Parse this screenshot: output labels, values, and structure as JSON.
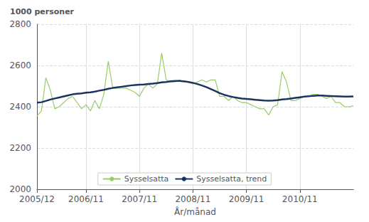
{
  "chart_data": {
    "type": "line",
    "ylabel": "1000 personer",
    "xlabel": "År/månad",
    "categories": [
      "2005/12",
      null,
      null,
      null,
      null,
      null,
      null,
      null,
      null,
      null,
      null,
      "2006/11",
      null,
      null,
      null,
      null,
      null,
      null,
      null,
      null,
      null,
      null,
      null,
      "2007/11",
      null,
      null,
      null,
      null,
      null,
      null,
      null,
      null,
      null,
      null,
      null,
      "2008/11",
      null,
      null,
      null,
      null,
      null,
      null,
      null,
      null,
      null,
      null,
      null,
      "2009/11",
      null,
      null,
      null,
      null,
      null,
      null,
      null,
      null,
      null,
      null,
      null,
      "2010/11",
      null,
      null,
      null,
      null,
      null,
      null,
      null,
      null,
      null,
      null,
      null,
      null
    ],
    "series": [
      {
        "name": "Sysselsatta",
        "color": "#99cc66",
        "values": [
          2355,
          2380,
          2540,
          2480,
          2390,
          2400,
          2420,
          2440,
          2450,
          2420,
          2390,
          2410,
          2380,
          2430,
          2390,
          2460,
          2620,
          2490,
          2490,
          2490,
          2490,
          2480,
          2470,
          2450,
          2490,
          2510,
          2490,
          2510,
          2660,
          2530,
          2520,
          2520,
          2530,
          2520,
          2520,
          2510,
          2520,
          2530,
          2520,
          2530,
          2530,
          2450,
          2450,
          2430,
          2450,
          2430,
          2420,
          2420,
          2410,
          2400,
          2390,
          2390,
          2360,
          2400,
          2410,
          2570,
          2520,
          2430,
          2430,
          2440,
          2450,
          2450,
          2460,
          2460,
          2450,
          2440,
          2450,
          2420,
          2420,
          2400,
          2400,
          2405
        ]
      },
      {
        "name": "Sysselsatta, trend",
        "color": "#1a3461",
        "values": [
          2420,
          2422,
          2428,
          2435,
          2440,
          2445,
          2450,
          2455,
          2460,
          2463,
          2465,
          2468,
          2470,
          2473,
          2478,
          2482,
          2487,
          2491,
          2494,
          2497,
          2500,
          2503,
          2505,
          2507,
          2508,
          2510,
          2512,
          2515,
          2518,
          2520,
          2523,
          2525,
          2525,
          2523,
          2520,
          2516,
          2510,
          2503,
          2495,
          2486,
          2476,
          2466,
          2458,
          2452,
          2447,
          2443,
          2440,
          2438,
          2436,
          2434,
          2432,
          2430,
          2429,
          2430,
          2432,
          2435,
          2437,
          2440,
          2443,
          2446,
          2449,
          2451,
          2453,
          2454,
          2454,
          2453,
          2452,
          2451,
          2450,
          2449,
          2449,
          2450
        ]
      }
    ],
    "ylim": [
      2000,
      2800
    ],
    "yticks": [
      2000,
      2200,
      2400,
      2600,
      2800
    ],
    "grid": true,
    "legend": "lower center"
  }
}
